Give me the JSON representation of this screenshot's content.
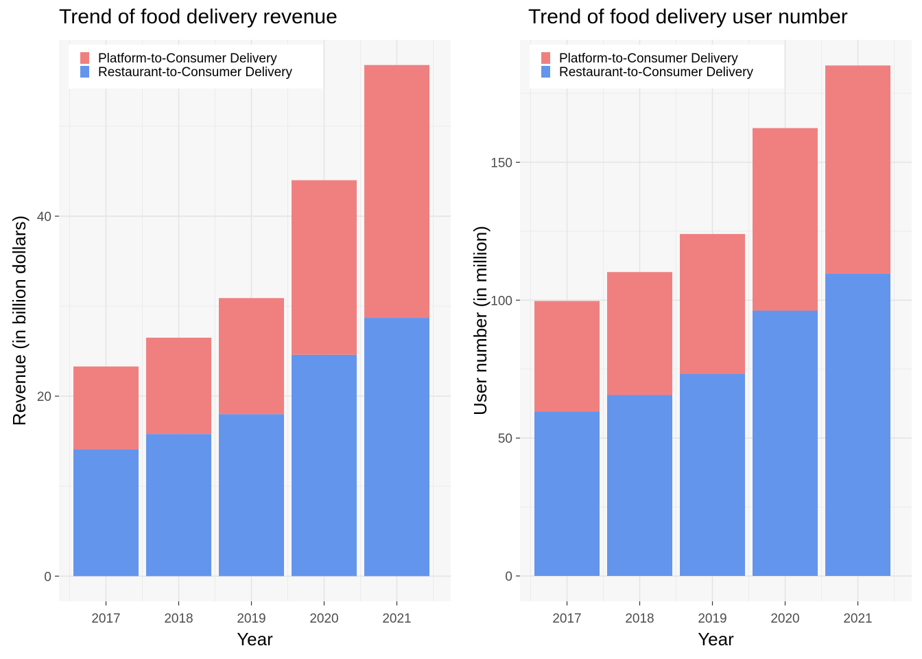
{
  "chart_data": [
    {
      "type": "bar",
      "stacked": true,
      "title": "Trend of food delivery revenue",
      "xlabel": "Year",
      "ylabel": "Revenue (in billion dollars)",
      "categories": [
        "2017",
        "2018",
        "2019",
        "2020",
        "2021"
      ],
      "series": [
        {
          "name": "Restaurant-to-Consumer Delivery",
          "color": "#6495ED",
          "values": [
            14.1,
            15.8,
            18.0,
            24.6,
            28.7
          ]
        },
        {
          "name": "Platform-to-Consumer Delivery",
          "color": "#F08080",
          "values": [
            9.2,
            10.7,
            12.9,
            19.4,
            28.1
          ]
        }
      ],
      "legend_order": [
        "Platform-to-Consumer Delivery",
        "Restaurant-to-Consumer Delivery"
      ],
      "yticks": [
        0,
        20,
        40
      ],
      "ylim": [
        -2.8,
        59.6
      ],
      "legend_position": "top-left",
      "grid": true
    },
    {
      "type": "bar",
      "stacked": true,
      "title": "Trend of food delivery user number",
      "xlabel": "Year",
      "ylabel": "User number (in million)",
      "categories": [
        "2017",
        "2018",
        "2019",
        "2020",
        "2021"
      ],
      "series": [
        {
          "name": "Restaurant-to-Consumer Delivery",
          "color": "#6495ED",
          "values": [
            59.7,
            65.6,
            73.3,
            96.2,
            109.7
          ]
        },
        {
          "name": "Platform-to-Consumer Delivery",
          "color": "#F08080",
          "values": [
            40.0,
            44.6,
            50.7,
            66.2,
            75.4
          ]
        }
      ],
      "legend_order": [
        "Platform-to-Consumer Delivery",
        "Restaurant-to-Consumer Delivery"
      ],
      "yticks": [
        0,
        50,
        100,
        150
      ],
      "ylim": [
        -9.2,
        194.4
      ],
      "legend_position": "top-left",
      "grid": true
    }
  ]
}
